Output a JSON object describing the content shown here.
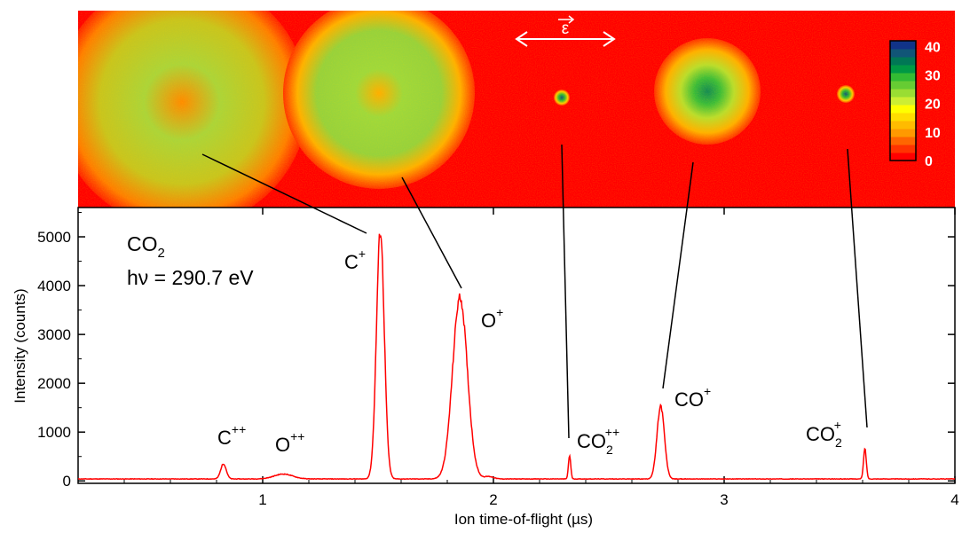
{
  "chart_data": [
    {
      "type": "heatmap",
      "panel": "velocity-map-images",
      "images": [
        {
          "for_peak": "C+",
          "max_value": 30
        },
        {
          "for_peak": "O+",
          "max_value": 32
        },
        {
          "for_peak": "CO2++",
          "max_value": 30
        },
        {
          "for_peak": "CO+",
          "max_value": 36
        },
        {
          "for_peak": "CO2+",
          "max_value": 35
        }
      ],
      "polarization_label": "ε",
      "colorbar": {
        "ticks": [
          "40",
          "30",
          "20",
          "10",
          "0"
        ],
        "tick_values": [
          40,
          30,
          20,
          10,
          0
        ],
        "range": [
          0,
          42
        ],
        "colors": [
          "#ff0000",
          "#ff3300",
          "#ff6600",
          "#ff9900",
          "#ffbb00",
          "#ffdd00",
          "#ffff00",
          "#ccee33",
          "#99dd33",
          "#66cc33",
          "#33bb33",
          "#009944",
          "#007755",
          "#115577",
          "#113388"
        ]
      }
    },
    {
      "type": "line",
      "panel": "time-of-flight-spectrum",
      "xlabel": "Ion time-of-flight (µs)",
      "ylabel": "Intensity (counts)",
      "xlim": [
        0.2,
        4.0
      ],
      "ylim": [
        -50,
        5600
      ],
      "xticks": [
        1,
        2,
        3,
        4
      ],
      "yticks": [
        0,
        1000,
        2000,
        3000,
        4000,
        5000
      ],
      "grid": false,
      "series_color": "#ff0000",
      "baseline": 40,
      "peaks": [
        {
          "label": "C++",
          "x": 0.83,
          "height": 310,
          "width": 0.012
        },
        {
          "label": "O++",
          "x": 1.09,
          "height": 100,
          "width": 0.04
        },
        {
          "label": "C+",
          "x": 1.51,
          "height": 5080,
          "width": 0.017
        },
        {
          "label": "O+",
          "x": 1.855,
          "height": 3720,
          "width": 0.032
        },
        {
          "label": "",
          "x": 1.98,
          "height": 50,
          "width": 0.02
        },
        {
          "label": "CO2++",
          "x": 2.33,
          "height": 480,
          "width": 0.005
        },
        {
          "label": "CO+",
          "x": 2.725,
          "height": 1490,
          "width": 0.016
        },
        {
          "label": "CO2+",
          "x": 3.61,
          "height": 620,
          "width": 0.006
        }
      ],
      "annotation": {
        "molecule": "CO",
        "molecule_sub": "2",
        "photon": "hν = 290.7 eV"
      },
      "peak_labels": {
        "c2": {
          "base": "C",
          "sup": "++"
        },
        "o2": {
          "base": "O",
          "sup": "++"
        },
        "c1": {
          "base": "C",
          "sup": "+"
        },
        "o1": {
          "base": "O",
          "sup": "+"
        },
        "co22": {
          "base": "CO",
          "sub": "2",
          "sup": "++"
        },
        "co1": {
          "base": "CO",
          "sup": "+"
        },
        "co21": {
          "base": "CO",
          "sub": "2",
          "sup": "+"
        }
      }
    }
  ]
}
